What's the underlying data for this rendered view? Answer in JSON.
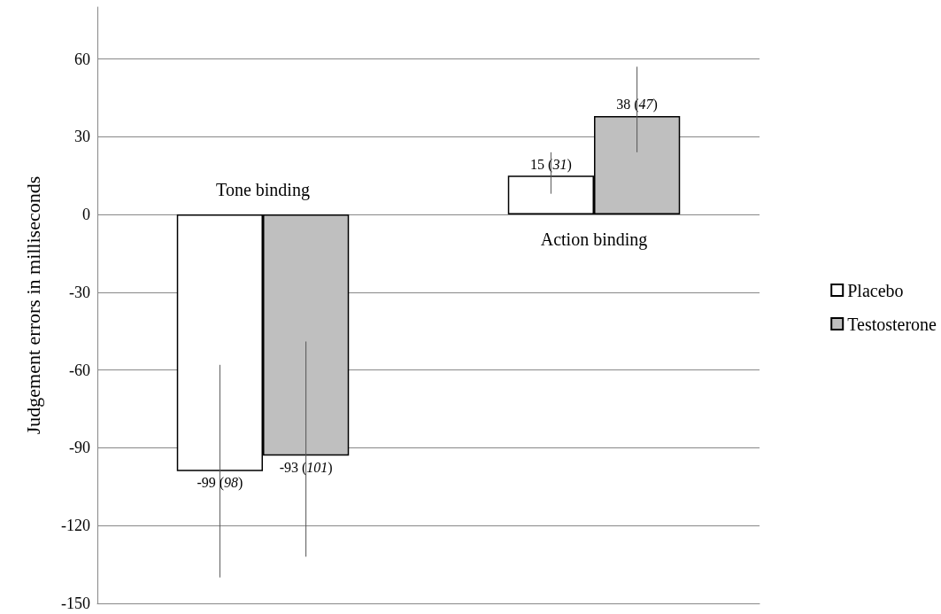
{
  "chart_data": {
    "type": "bar",
    "ylabel": "Judgement errors in milliseconds",
    "categories": [
      "Tone binding",
      "Action binding"
    ],
    "series": [
      {
        "name": "Placebo",
        "color": "#ffffff",
        "values": [
          -99,
          15
        ],
        "errors": [
          [
            -140,
            -58
          ],
          [
            8,
            24
          ]
        ],
        "value_labels": [
          "-99 (98)",
          "15 (31)"
        ]
      },
      {
        "name": "Testosterone",
        "color": "#bfbfbf",
        "values": [
          -93,
          38
        ],
        "errors": [
          [
            -132,
            -49
          ],
          [
            24,
            57
          ]
        ],
        "value_labels": [
          "-93 (101)",
          "38 (47)"
        ]
      }
    ],
    "ylim": [
      -150,
      80
    ],
    "yticks": [
      -150,
      -120,
      -90,
      -60,
      -30,
      0,
      30,
      60
    ],
    "grid": "y",
    "legend": "right"
  }
}
